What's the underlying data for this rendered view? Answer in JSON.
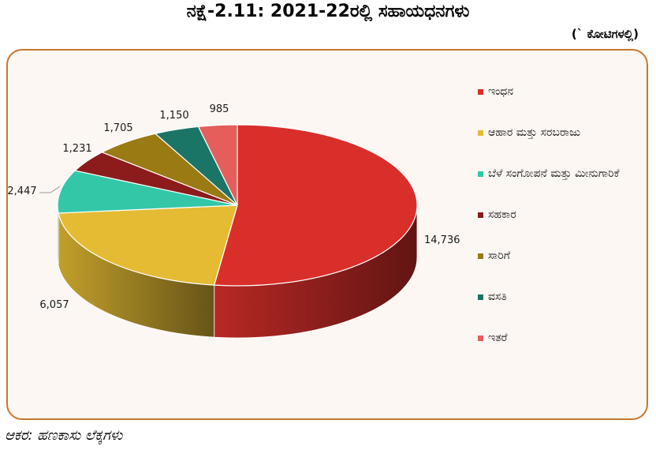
{
  "title": "ನಕ್ಷೆ-2.11: 2021-22ರಲ್ಲಿ ಸಹಾಯಧನಗಳು",
  "unit": "(` ಕೋಟಿಗಳಲ್ಲಿ)",
  "source": "ಆಕರ: ಹಣಕಾಸು ಲೆಕ್ಕಗಳು",
  "chart_data": {
    "type": "pie",
    "style": "3d",
    "legend_position": "right",
    "categories": [
      "ಇಂಧನ",
      "ಆಹಾರ ಮತ್ತು ಸರಬರಾಜು",
      "ಬೆಳೆ ಸಂಗೋಪನೆ ಮತ್ತು ಮೀನುಗಾರಿಕೆ",
      "ಸಹಕಾರ",
      "ಸಾರಿಗೆ",
      "ವಸತಿ",
      "ಇತರೆ"
    ],
    "values": [
      14736,
      6057,
      2447,
      1231,
      1705,
      1150,
      985
    ],
    "data_labels": [
      "14,736",
      "6,057",
      "2,447",
      "1,231",
      "1,705",
      "1,150",
      "985"
    ],
    "colors": [
      "#d92f2a",
      "#e4bb33",
      "#33c7a8",
      "#8c1c1c",
      "#9a7a12",
      "#1b7567",
      "#e45e5c"
    ]
  }
}
